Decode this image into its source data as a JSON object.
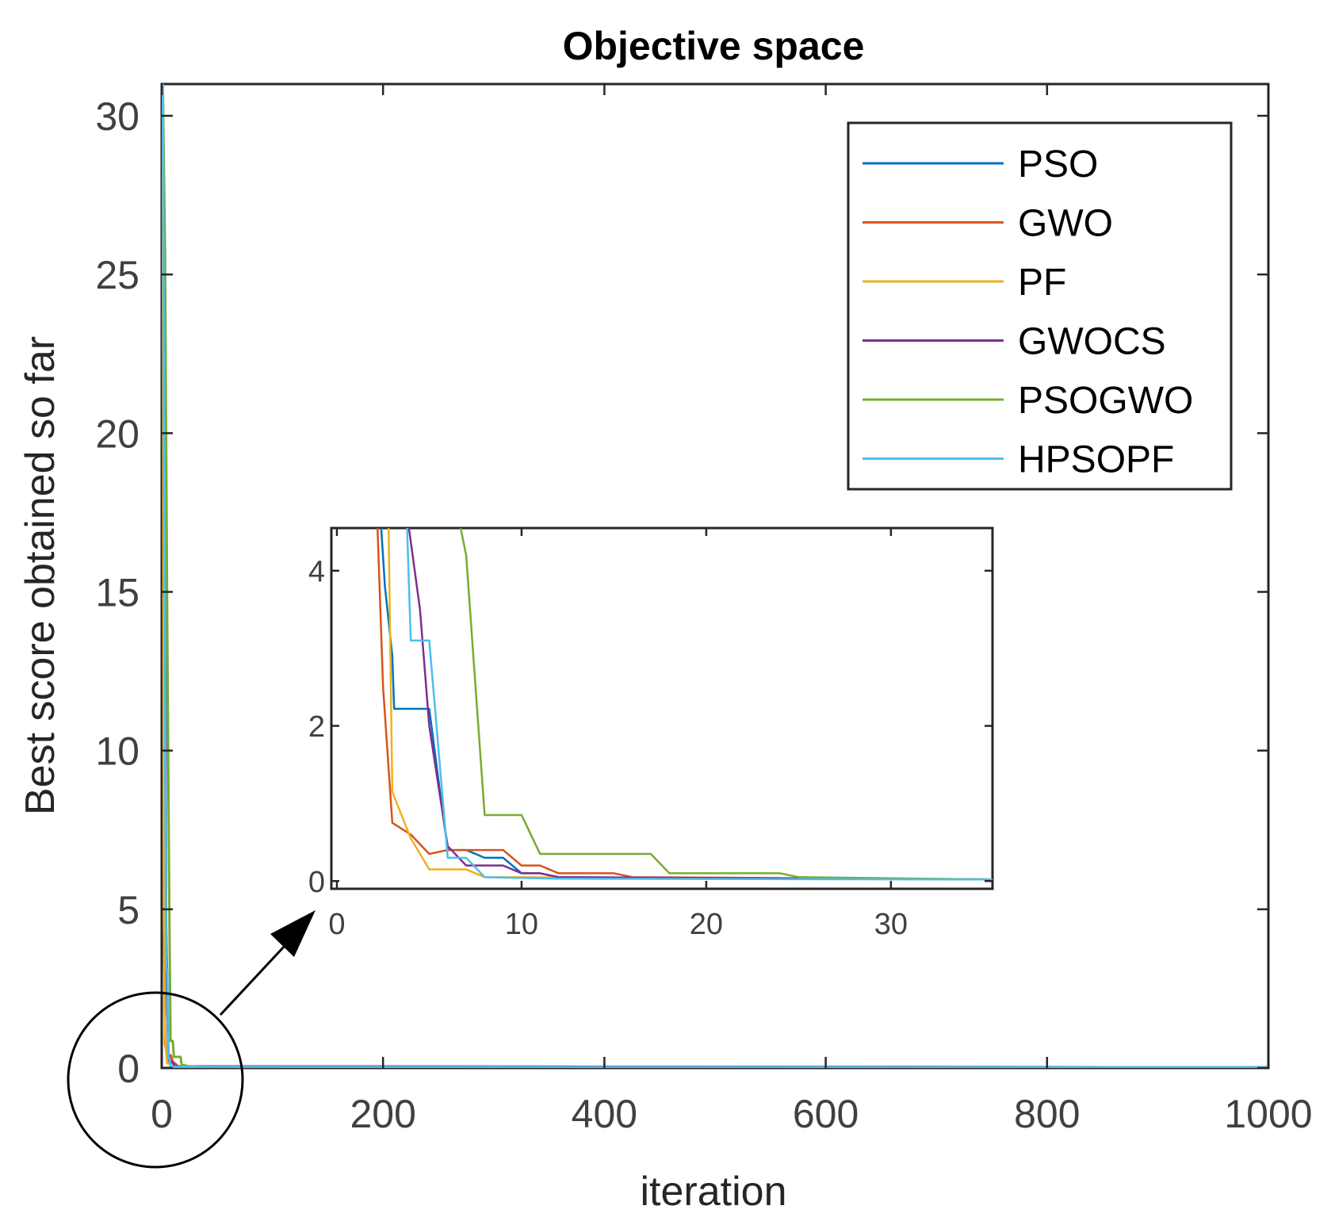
{
  "chart_data": [
    {
      "id": "main",
      "type": "line",
      "title": "Objective space",
      "xlabel": "iteration",
      "ylabel": "Best score obtained so far",
      "xlim": [
        0,
        1000
      ],
      "ylim": [
        0,
        31
      ],
      "xticks": [
        0,
        200,
        400,
        600,
        800,
        1000
      ],
      "xtick_labels": [
        "0",
        "200",
        "400",
        "600",
        "800",
        "1000"
      ],
      "yticks": [
        0,
        5,
        10,
        15,
        20,
        25,
        30
      ],
      "ytick_labels": [
        "0",
        "5",
        "10",
        "15",
        "20",
        "25",
        "30"
      ],
      "legend_position": "top-right",
      "series": [
        {
          "name": "PSO",
          "color": "#0072BD",
          "x": [
            1,
            2,
            3,
            4,
            5,
            6,
            8,
            12,
            1000
          ],
          "y": [
            31,
            22,
            2.2,
            2.2,
            2.2,
            0.4,
            0.3,
            0.05,
            0.02
          ]
        },
        {
          "name": "GWO",
          "color": "#D95319",
          "x": [
            1,
            2,
            3,
            4,
            5,
            8,
            10,
            15,
            1000
          ],
          "y": [
            31,
            5,
            0.75,
            0.6,
            0.35,
            0.4,
            0.2,
            0.05,
            0.02
          ]
        },
        {
          "name": "PF",
          "color": "#EDB120",
          "x": [
            1,
            2,
            3,
            4,
            5,
            7,
            8,
            12,
            1000
          ],
          "y": [
            31,
            4.5,
            1.1,
            0.55,
            0.15,
            0.15,
            0.05,
            0.03,
            0.02
          ]
        },
        {
          "name": "GWOCS",
          "color": "#7E2F8E",
          "x": [
            1,
            3,
            4,
            5,
            6,
            7,
            9,
            12,
            1000
          ],
          "y": [
            31,
            18,
            4.5,
            2.0,
            0.45,
            0.2,
            0.2,
            0.05,
            0.02
          ]
        },
        {
          "name": "PSOGWO",
          "color": "#77AC30",
          "x": [
            1,
            3,
            5,
            7,
            8,
            10,
            11,
            17,
            18,
            25,
            40,
            1000
          ],
          "y": [
            31,
            25.7,
            14,
            4.5,
            0.85,
            0.85,
            0.35,
            0.35,
            0.1,
            0.05,
            0.03,
            0.02
          ]
        },
        {
          "name": "HPSOPF",
          "color": "#4DBEEE",
          "x": [
            1,
            3,
            4,
            5,
            6,
            7,
            8,
            12,
            1000
          ],
          "y": [
            31,
            12,
            3.1,
            3.1,
            0.3,
            0.3,
            0.05,
            0.03,
            0.02
          ]
        }
      ]
    },
    {
      "id": "inset",
      "type": "line",
      "title": "",
      "xlabel": "",
      "ylabel": "",
      "xlim": [
        -0.3,
        35.5
      ],
      "ylim": [
        -0.1,
        4.55
      ],
      "xticks": [
        0,
        10,
        20,
        30
      ],
      "xtick_labels": [
        "0",
        "10",
        "20",
        "30"
      ],
      "yticks": [
        0,
        2,
        4
      ],
      "ytick_labels": [
        "0",
        "2",
        "4"
      ],
      "series": [
        {
          "name": "PSO",
          "color": "#0072BD",
          "x": [
            2.4,
            2.6,
            3,
            3.1,
            4,
            5,
            5.5,
            6,
            7,
            8,
            9,
            10,
            11,
            12,
            35.5
          ],
          "y": [
            4.55,
            3.8,
            2.9,
            2.22,
            2.22,
            2.22,
            1.3,
            0.4,
            0.4,
            0.3,
            0.3,
            0.1,
            0.1,
            0.05,
            0.02
          ]
        },
        {
          "name": "GWO",
          "color": "#D95319",
          "x": [
            2.2,
            2.5,
            3,
            4,
            5,
            6,
            8,
            9,
            10,
            11,
            12,
            15,
            16,
            35.5
          ],
          "y": [
            4.55,
            2.5,
            0.75,
            0.6,
            0.35,
            0.4,
            0.4,
            0.4,
            0.2,
            0.2,
            0.1,
            0.1,
            0.05,
            0.02
          ]
        },
        {
          "name": "PF",
          "color": "#EDB120",
          "x": [
            2.8,
            3,
            4,
            5,
            6,
            7,
            8,
            10,
            35.5
          ],
          "y": [
            4.55,
            1.15,
            0.55,
            0.15,
            0.15,
            0.15,
            0.05,
            0.05,
            0.02
          ]
        },
        {
          "name": "GWOCS",
          "color": "#7E2F8E",
          "x": [
            3.9,
            4.5,
            5,
            6,
            7,
            8,
            9,
            10,
            11,
            12,
            35.5
          ],
          "y": [
            4.55,
            3.5,
            2.0,
            0.45,
            0.2,
            0.2,
            0.2,
            0.1,
            0.1,
            0.05,
            0.02
          ]
        },
        {
          "name": "PSOGWO",
          "color": "#77AC30",
          "x": [
            6.7,
            7,
            8,
            9,
            10,
            11,
            17,
            18,
            24,
            25,
            35.5
          ],
          "y": [
            4.55,
            4.2,
            0.85,
            0.85,
            0.85,
            0.35,
            0.35,
            0.1,
            0.1,
            0.05,
            0.02
          ]
        },
        {
          "name": "HPSOPF",
          "color": "#4DBEEE",
          "x": [
            3.8,
            4,
            5,
            6,
            7,
            8,
            12,
            35.5
          ],
          "y": [
            4.55,
            3.1,
            3.1,
            0.3,
            0.3,
            0.05,
            0.03,
            0.02
          ]
        }
      ]
    }
  ]
}
